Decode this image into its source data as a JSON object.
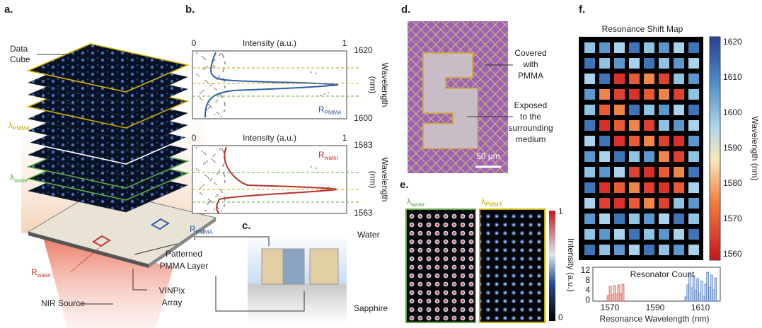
{
  "figure": {
    "a": {
      "label": "a.",
      "data_cube": [
        "Data",
        "Cube"
      ],
      "lambda_pmma": {
        "base": "λ",
        "sub": "PMMA"
      },
      "lambda_water": {
        "base": "λ",
        "sub": "water"
      },
      "r_pmma": {
        "base": "R",
        "sub": "PMMA"
      },
      "r_water": {
        "base": "R",
        "sub": "water"
      },
      "layer": [
        "Patterned",
        "PMMA Layer"
      ],
      "array": [
        "VINPix",
        "Array"
      ],
      "source": "NIR Source"
    },
    "b": {
      "label": "b.",
      "top": {
        "x_title": "Intensity (a.u.)",
        "x_ticks": [
          0,
          1
        ],
        "y_ticks": [
          1620,
          1600
        ],
        "y_title": [
          "Wavelength",
          "(nm)"
        ],
        "legend": {
          "base": "R",
          "sub": "PMMA"
        }
      },
      "bottom": {
        "x_title": "Intensity (a.u.)",
        "x_ticks": [
          0,
          1
        ],
        "y_ticks": [
          1583,
          1563
        ],
        "y_title": [
          "Wavelength",
          "(nm)"
        ],
        "legend": {
          "base": "R",
          "sub": "water"
        }
      }
    },
    "c": {
      "label": "c.",
      "water": "Water",
      "sapphire": "Sapphire"
    },
    "d": {
      "label": "d.",
      "covered": [
        "Covered",
        "with",
        "PMMA"
      ],
      "exposed": [
        "Exposed",
        "to the",
        "surrounding",
        "medium"
      ],
      "scale_bar": "50 µm"
    },
    "e": {
      "label": "e.",
      "left": {
        "base": "λ",
        "sub": "water"
      },
      "right": {
        "base": "λ",
        "sub": "PMMA"
      },
      "colorbar": {
        "ticks": [
          1,
          0
        ],
        "title": "Intensity (a.u.)"
      }
    },
    "f": {
      "label": "f.",
      "title": "Resonance Shift Map",
      "colorbar": {
        "ticks": [
          1620,
          1610,
          1600,
          1590,
          1580,
          1570,
          1560
        ],
        "title": "Wavelength (nm)"
      },
      "histogram": {
        "title": "Resonator Count",
        "y_ticks": [
          12,
          8,
          4,
          0
        ],
        "x_ticks": [
          1570,
          1590,
          1610
        ],
        "x_title": "Resonance Wavelength (nm)"
      }
    }
  }
}
